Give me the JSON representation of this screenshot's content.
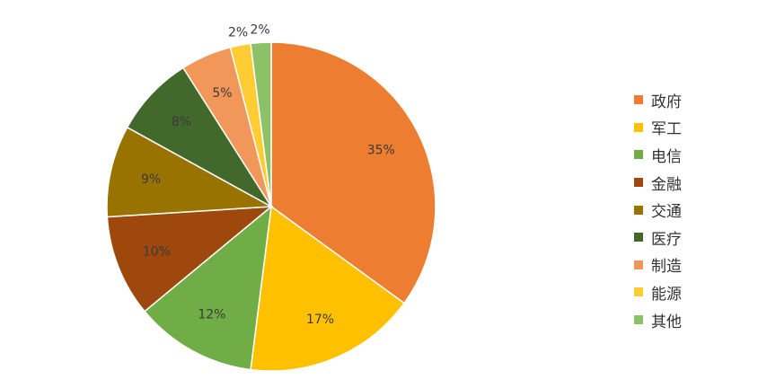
{
  "chart_data": {
    "type": "pie",
    "categories": [
      "政府",
      "军工",
      "电信",
      "金融",
      "交通",
      "医疗",
      "制造",
      "能源",
      "其他"
    ],
    "values": [
      35,
      17,
      12,
      10,
      9,
      8,
      5,
      2,
      2
    ],
    "labels": [
      "35%",
      "17%",
      "12%",
      "10%",
      "9%",
      "8%",
      "5%",
      "2%",
      "2%"
    ],
    "colors": [
      "#ED7D31",
      "#FFC000",
      "#70AD47",
      "#9E480E",
      "#997300",
      "#43682B",
      "#F1975A",
      "#FFCD33",
      "#8CC168"
    ],
    "legend_position": "right",
    "start": "top, clockwise"
  }
}
